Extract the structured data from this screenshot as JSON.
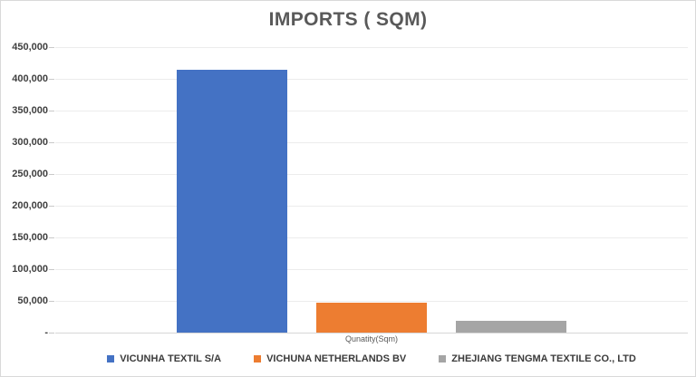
{
  "title": "IMPORTS ( SQM)",
  "chart_data": {
    "type": "bar",
    "categories": [
      "Qunatity(Sqm)"
    ],
    "series": [
      {
        "name": "VICUNHA TEXTIL S/A",
        "color": "#4472C4",
        "values": [
          415000
        ]
      },
      {
        "name": "VICHUNA NETHERLANDS BV",
        "color": "#ED7D31",
        "values": [
          47000
        ]
      },
      {
        "name": "ZHEJIANG TENGMA TEXTILE CO., LTD",
        "color": "#A5A5A5",
        "values": [
          18000
        ]
      }
    ],
    "ylim": [
      0,
      450000
    ],
    "ytick_step": 50000,
    "yticks": [
      {
        "value": 450000,
        "label": "450,000"
      },
      {
        "value": 400000,
        "label": "400,000"
      },
      {
        "value": 350000,
        "label": "350,000"
      },
      {
        "value": 300000,
        "label": "300,000"
      },
      {
        "value": 250000,
        "label": "250,000"
      },
      {
        "value": 200000,
        "label": "200,000"
      },
      {
        "value": 150000,
        "label": "150,000"
      },
      {
        "value": 100000,
        "label": "100,000"
      },
      {
        "value": 50000,
        "label": "50,000"
      },
      {
        "value": 0,
        "label": "-"
      }
    ],
    "grid": true,
    "legend_position": "bottom",
    "xlabel": "Qunatity(Sqm)",
    "ylabel": ""
  },
  "colors": {
    "title_text": "#595959",
    "axis_label_text": "#3F3F3F",
    "legend_text": "#3B3B3B",
    "gridline": "#ECECEC",
    "baseline": "#D6D6D6",
    "canvas_border": "#D9D9D9",
    "background": "#FFFFFF"
  }
}
